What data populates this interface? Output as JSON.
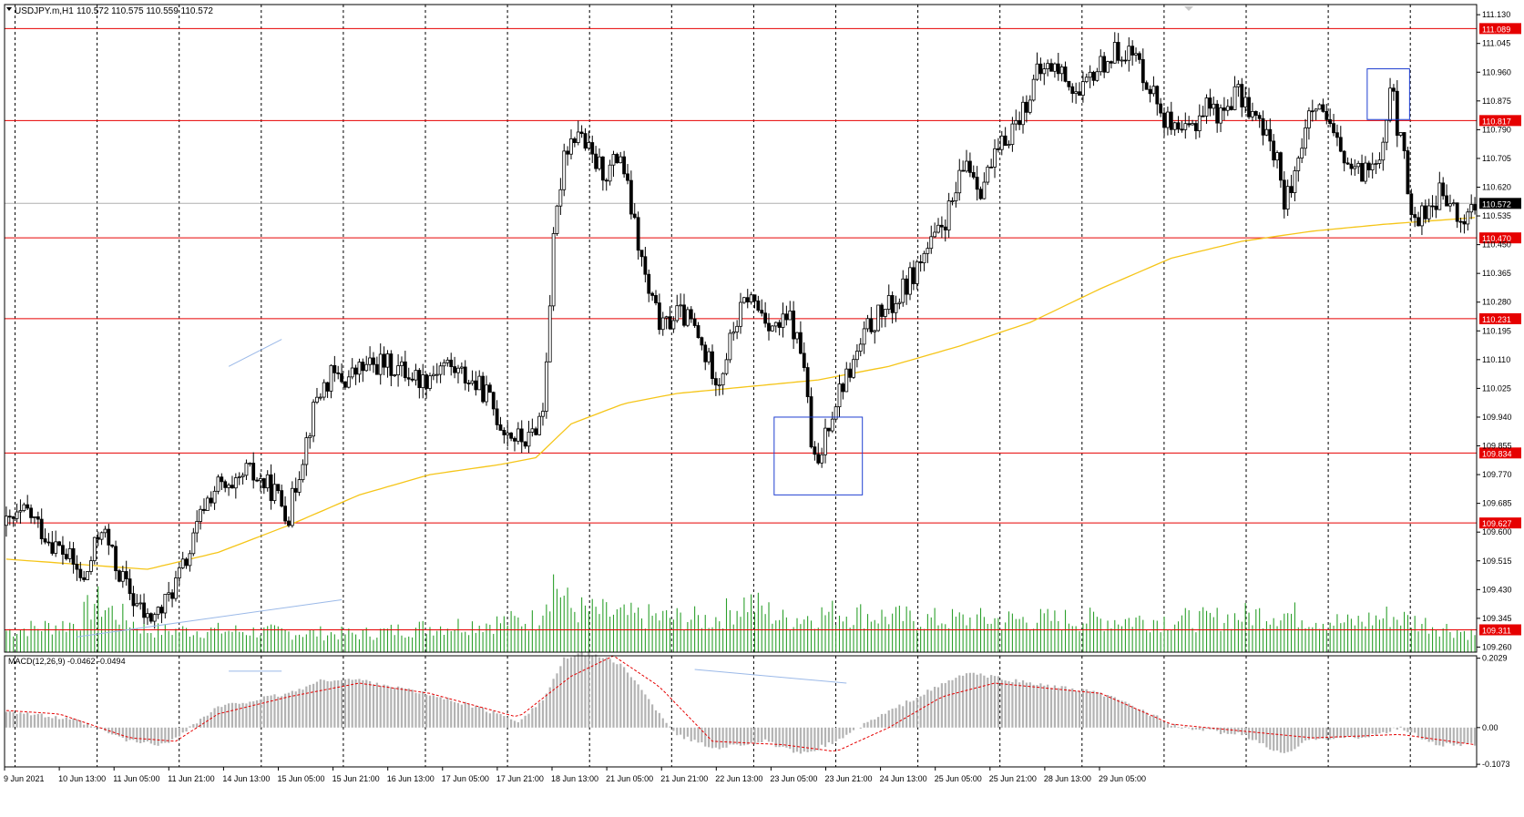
{
  "header": {
    "symbol_label": "USDJPY.m,H1",
    "ohlc_label": "110.572 110.575 110.559 110.572"
  },
  "macd_label": "MACD(12,26,9) -0.0462 -0.0494",
  "colors": {
    "background": "#ffffff",
    "grid": "#000000",
    "candle": "#000000",
    "ma": "#f5c518",
    "volume": "#2ca02c",
    "level_line": "#e60000",
    "box": "#1f3fd1",
    "trendline": "#9bb9e8",
    "macd_hist": "#b3b3b3",
    "macd_signal": "#e60000"
  },
  "chart_data": [
    {
      "type": "candlestick",
      "symbol": "USDJPY.m",
      "timeframe": "H1",
      "price_axis_ticks": [
        "111.130",
        "111.045",
        "110.960",
        "110.875",
        "110.790",
        "110.705",
        "110.620",
        "110.535",
        "110.450",
        "110.365",
        "110.280",
        "110.195",
        "110.110",
        "110.025",
        "109.940",
        "109.855",
        "109.770",
        "109.685",
        "109.600",
        "109.515",
        "109.430",
        "109.345",
        "109.260"
      ],
      "ylim": [
        109.245,
        111.16
      ],
      "time_axis_labels": [
        "9 Jun 2021",
        "10 Jun 13:00",
        "11 Jun 05:00",
        "11 Jun 21:00",
        "14 Jun 13:00",
        "15 Jun 05:00",
        "15 Jun 21:00",
        "16 Jun 13:00",
        "17 Jun 05:00",
        "17 Jun 21:00",
        "18 Jun 13:00",
        "21 Jun 05:00",
        "21 Jun 21:00",
        "22 Jun 13:00",
        "23 Jun 05:00",
        "23 Jun 21:00",
        "24 Jun 13:00",
        "25 Jun 05:00",
        "25 Jun 21:00",
        "28 Jun 13:00",
        "29 Jun 05:00"
      ],
      "horizontal_levels": [
        "111.089",
        "110.817",
        "110.470",
        "110.231",
        "109.834",
        "109.627",
        "109.311"
      ],
      "current_price": "110.572",
      "close_path": [
        [
          0,
          109.62
        ],
        [
          6,
          109.66
        ],
        [
          12,
          109.58
        ],
        [
          18,
          109.52
        ],
        [
          22,
          109.45
        ],
        [
          27,
          109.62
        ],
        [
          31,
          109.5
        ],
        [
          36,
          109.4
        ],
        [
          40,
          109.34
        ],
        [
          44,
          109.37
        ],
        [
          48,
          109.45
        ],
        [
          52,
          109.54
        ],
        [
          56,
          109.68
        ],
        [
          60,
          109.74
        ],
        [
          64,
          109.71
        ],
        [
          68,
          109.78
        ],
        [
          72,
          109.75
        ],
        [
          76,
          109.72
        ],
        [
          80,
          109.65
        ],
        [
          84,
          109.83
        ],
        [
          88,
          110.0
        ],
        [
          92,
          110.06
        ],
        [
          96,
          110.05
        ],
        [
          100,
          110.08
        ],
        [
          106,
          110.1
        ],
        [
          112,
          110.08
        ],
        [
          118,
          110.05
        ],
        [
          124,
          110.1
        ],
        [
          130,
          110.06
        ],
        [
          136,
          110.01
        ],
        [
          140,
          109.92
        ],
        [
          144,
          109.88
        ],
        [
          148,
          109.87
        ],
        [
          152,
          109.96
        ],
        [
          155,
          110.45
        ],
        [
          158,
          110.73
        ],
        [
          162,
          110.79
        ],
        [
          166,
          110.7
        ],
        [
          170,
          110.66
        ],
        [
          174,
          110.72
        ],
        [
          178,
          110.5
        ],
        [
          182,
          110.3
        ],
        [
          186,
          110.2
        ],
        [
          190,
          110.25
        ],
        [
          194,
          110.22
        ],
        [
          198,
          110.12
        ],
        [
          202,
          110.05
        ],
        [
          206,
          110.2
        ],
        [
          210,
          110.3
        ],
        [
          214,
          110.25
        ],
        [
          218,
          110.2
        ],
        [
          222,
          110.23
        ],
        [
          226,
          110.1
        ],
        [
          228,
          109.85
        ],
        [
          230,
          109.78
        ],
        [
          232,
          109.9
        ],
        [
          236,
          110.02
        ],
        [
          240,
          110.1
        ],
        [
          244,
          110.2
        ],
        [
          248,
          110.25
        ],
        [
          252,
          110.28
        ],
        [
          256,
          110.35
        ],
        [
          260,
          110.42
        ],
        [
          264,
          110.48
        ],
        [
          268,
          110.57
        ],
        [
          272,
          110.7
        ],
        [
          276,
          110.62
        ],
        [
          280,
          110.7
        ],
        [
          284,
          110.78
        ],
        [
          288,
          110.85
        ],
        [
          292,
          110.95
        ],
        [
          296,
          110.98
        ],
        [
          300,
          110.95
        ],
        [
          304,
          110.88
        ],
        [
          308,
          110.96
        ],
        [
          312,
          111.0
        ],
        [
          316,
          111.03
        ],
        [
          320,
          111.0
        ],
        [
          324,
          110.92
        ],
        [
          328,
          110.83
        ],
        [
          332,
          110.76
        ],
        [
          336,
          110.8
        ],
        [
          340,
          110.87
        ],
        [
          344,
          110.83
        ],
        [
          348,
          110.9
        ],
        [
          352,
          110.86
        ],
        [
          356,
          110.78
        ],
        [
          360,
          110.72
        ],
        [
          362,
          110.55
        ],
        [
          366,
          110.72
        ],
        [
          370,
          110.85
        ],
        [
          374,
          110.81
        ],
        [
          378,
          110.72
        ],
        [
          382,
          110.65
        ],
        [
          386,
          110.68
        ],
        [
          388,
          110.72
        ],
        [
          390,
          110.75
        ],
        [
          392,
          110.94
        ],
        [
          394,
          110.8
        ],
        [
          396,
          110.7
        ],
        [
          398,
          110.52
        ],
        [
          402,
          110.55
        ],
        [
          406,
          110.6
        ],
        [
          410,
          110.55
        ],
        [
          412,
          110.5
        ],
        [
          414,
          110.55
        ],
        [
          416,
          110.57
        ]
      ],
      "ma_path": [
        [
          0,
          109.52
        ],
        [
          40,
          109.49
        ],
        [
          60,
          109.54
        ],
        [
          80,
          109.62
        ],
        [
          100,
          109.71
        ],
        [
          120,
          109.77
        ],
        [
          140,
          109.8
        ],
        [
          150,
          109.82
        ],
        [
          160,
          109.92
        ],
        [
          175,
          109.98
        ],
        [
          190,
          110.01
        ],
        [
          210,
          110.03
        ],
        [
          230,
          110.05
        ],
        [
          250,
          110.09
        ],
        [
          270,
          110.15
        ],
        [
          290,
          110.22
        ],
        [
          310,
          110.32
        ],
        [
          330,
          110.41
        ],
        [
          350,
          110.46
        ],
        [
          370,
          110.49
        ],
        [
          390,
          110.51
        ],
        [
          416,
          110.53
        ]
      ],
      "volume_path": [
        [
          0,
          0.3
        ],
        [
          20,
          0.4
        ],
        [
          25,
          0.7
        ],
        [
          40,
          0.3
        ],
        [
          60,
          0.3
        ],
        [
          100,
          0.25
        ],
        [
          120,
          0.35
        ],
        [
          150,
          0.45
        ],
        [
          155,
          1.0
        ],
        [
          160,
          0.6
        ],
        [
          175,
          0.5
        ],
        [
          200,
          0.45
        ],
        [
          210,
          0.7
        ],
        [
          220,
          0.45
        ],
        [
          235,
          0.55
        ],
        [
          260,
          0.45
        ],
        [
          290,
          0.45
        ],
        [
          300,
          0.45
        ],
        [
          340,
          0.45
        ],
        [
          360,
          0.55
        ],
        [
          380,
          0.4
        ],
        [
          392,
          0.5
        ],
        [
          416,
          0.25
        ]
      ],
      "boxes": [
        {
          "from_bar": 218,
          "to_bar": 242,
          "high": 109.94,
          "low": 109.71
        },
        {
          "from_bar": 386,
          "to_bar": 397,
          "high": 110.97,
          "low": 110.82
        }
      ]
    },
    {
      "type": "bar",
      "name": "MACD(12,26,9)",
      "values_label": "-0.0462 -0.0494",
      "axis_ticks": [
        "0.2029",
        "0.00",
        "-0.1073"
      ],
      "ylim": [
        -0.115,
        0.21
      ],
      "hist_path": [
        [
          0,
          0.05
        ],
        [
          20,
          0.02
        ],
        [
          35,
          -0.04
        ],
        [
          45,
          -0.05
        ],
        [
          60,
          0.06
        ],
        [
          70,
          0.08
        ],
        [
          80,
          0.1
        ],
        [
          90,
          0.14
        ],
        [
          100,
          0.14
        ],
        [
          110,
          0.12
        ],
        [
          130,
          0.07
        ],
        [
          145,
          0.02
        ],
        [
          152,
          0.08
        ],
        [
          158,
          0.2
        ],
        [
          165,
          0.22
        ],
        [
          175,
          0.18
        ],
        [
          182,
          0.08
        ],
        [
          190,
          -0.02
        ],
        [
          200,
          -0.06
        ],
        [
          215,
          -0.04
        ],
        [
          225,
          -0.08
        ],
        [
          235,
          -0.04
        ],
        [
          245,
          0.02
        ],
        [
          260,
          0.1
        ],
        [
          272,
          0.16
        ],
        [
          290,
          0.13
        ],
        [
          310,
          0.1
        ],
        [
          320,
          0.06
        ],
        [
          332,
          0.0
        ],
        [
          350,
          -0.02
        ],
        [
          362,
          -0.08
        ],
        [
          370,
          -0.03
        ],
        [
          385,
          -0.03
        ],
        [
          395,
          0.0
        ],
        [
          405,
          -0.05
        ],
        [
          416,
          -0.05
        ]
      ],
      "signal_path": [
        [
          0,
          0.05
        ],
        [
          15,
          0.04
        ],
        [
          35,
          -0.03
        ],
        [
          48,
          -0.04
        ],
        [
          60,
          0.04
        ],
        [
          80,
          0.09
        ],
        [
          100,
          0.13
        ],
        [
          120,
          0.1
        ],
        [
          145,
          0.03
        ],
        [
          160,
          0.15
        ],
        [
          172,
          0.21
        ],
        [
          185,
          0.12
        ],
        [
          200,
          -0.04
        ],
        [
          220,
          -0.05
        ],
        [
          235,
          -0.07
        ],
        [
          250,
          0.0
        ],
        [
          265,
          0.09
        ],
        [
          280,
          0.13
        ],
        [
          310,
          0.1
        ],
        [
          330,
          0.01
        ],
        [
          350,
          -0.01
        ],
        [
          370,
          -0.03
        ],
        [
          395,
          -0.02
        ],
        [
          416,
          -0.05
        ]
      ]
    }
  ]
}
